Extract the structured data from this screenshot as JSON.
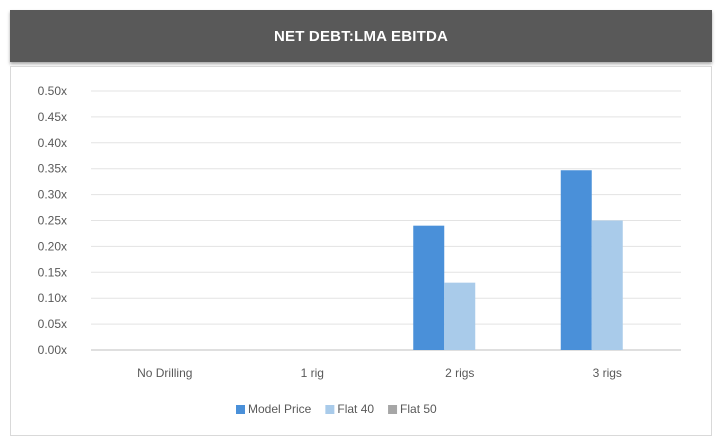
{
  "chart_data": {
    "type": "bar",
    "title": "NET DEBT:LMA EBITDA",
    "categories": [
      "No Drilling",
      "1 rig",
      "2 rigs",
      "3 rigs"
    ],
    "series": [
      {
        "name": "Model Price",
        "color": "#4a90d9",
        "values": [
          0,
          0,
          0.24,
          0.347
        ]
      },
      {
        "name": "Flat 40",
        "color": "#a9cbea",
        "values": [
          0,
          0,
          0.13,
          0.25
        ]
      },
      {
        "name": "Flat 50",
        "color": "#a6a6a6",
        "values": [
          0,
          0,
          0,
          0
        ]
      }
    ],
    "ylim": [
      0,
      0.5
    ],
    "yticks": [
      "0.00x",
      "0.05x",
      "0.10x",
      "0.15x",
      "0.20x",
      "0.25x",
      "0.30x",
      "0.35x",
      "0.40x",
      "0.45x",
      "0.50x"
    ],
    "ytick_values": [
      0,
      0.05,
      0.1,
      0.15,
      0.2,
      0.25,
      0.3,
      0.35,
      0.4,
      0.45,
      0.5
    ],
    "grid": true,
    "legend_position": "bottom"
  }
}
